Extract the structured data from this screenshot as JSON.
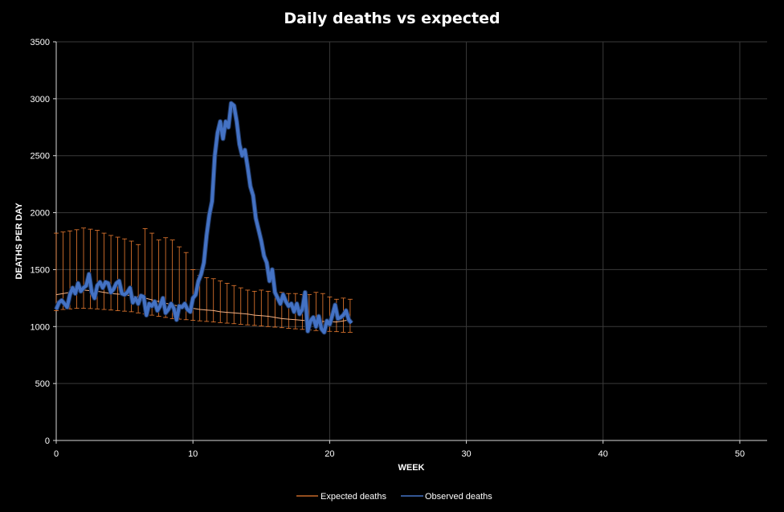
{
  "chart_data": {
    "type": "line",
    "title": "Daily deaths  vs  expected",
    "xlabel": "WEEK",
    "ylabel": "DEATHS PER DAY",
    "xlim": [
      0,
      52
    ],
    "ylim": [
      0,
      3500
    ],
    "xticks": [
      0,
      10,
      20,
      30,
      40,
      50
    ],
    "yticks": [
      0,
      500,
      1000,
      1500,
      2000,
      2500,
      3000,
      3500
    ],
    "grid": true,
    "legend_position": "bottom",
    "series": [
      {
        "name": "Expected deaths",
        "color": "#ed7d31",
        "style": "line-with-error-bars",
        "x": [
          0,
          0.5,
          1,
          1.5,
          2,
          2.5,
          3,
          3.5,
          4,
          4.5,
          5,
          5.5,
          6,
          6.5,
          7,
          7.5,
          8,
          8.5,
          9,
          9.5,
          10,
          10.5,
          11,
          11.5,
          12,
          12.5,
          13,
          13.5,
          14,
          14.5,
          15,
          15.5,
          16,
          16.5,
          17,
          17.5,
          18,
          18.5,
          19,
          19.5,
          20,
          20.5,
          21,
          21.5
        ],
        "values": [
          1280,
          1290,
          1300,
          1310,
          1320,
          1315,
          1310,
          1300,
          1290,
          1285,
          1280,
          1270,
          1260,
          1250,
          1235,
          1220,
          1205,
          1190,
          1180,
          1170,
          1160,
          1150,
          1145,
          1140,
          1130,
          1125,
          1120,
          1115,
          1110,
          1100,
          1095,
          1090,
          1080,
          1070,
          1065,
          1060,
          1055,
          1050,
          1048,
          1045,
          1042,
          1040,
          1050,
          1060
        ],
        "upper": [
          1820,
          1830,
          1840,
          1850,
          1865,
          1855,
          1845,
          1820,
          1800,
          1785,
          1770,
          1750,
          1720,
          1860,
          1820,
          1760,
          1780,
          1760,
          1700,
          1650,
          1500,
          1450,
          1430,
          1420,
          1400,
          1380,
          1360,
          1340,
          1320,
          1310,
          1320,
          1310,
          1300,
          1300,
          1290,
          1290,
          1280,
          1280,
          1300,
          1290,
          1260,
          1240,
          1250,
          1240
        ],
        "lower": [
          1140,
          1150,
          1155,
          1160,
          1160,
          1158,
          1155,
          1150,
          1145,
          1140,
          1135,
          1130,
          1120,
          1110,
          1100,
          1090,
          1080,
          1070,
          1065,
          1060,
          1055,
          1050,
          1045,
          1040,
          1035,
          1030,
          1025,
          1020,
          1015,
          1010,
          1005,
          1000,
          995,
          990,
          985,
          980,
          975,
          970,
          965,
          960,
          958,
          955,
          950,
          950
        ]
      },
      {
        "name": "Observed deaths",
        "color": "#4472c4",
        "style": "thick-line",
        "x": [
          0,
          0.2,
          0.4,
          0.6,
          0.8,
          1.0,
          1.2,
          1.4,
          1.6,
          1.8,
          2.0,
          2.2,
          2.4,
          2.6,
          2.8,
          3.0,
          3.2,
          3.4,
          3.6,
          3.8,
          4.0,
          4.2,
          4.4,
          4.6,
          4.8,
          5.0,
          5.2,
          5.4,
          5.6,
          5.8,
          6.0,
          6.2,
          6.4,
          6.6,
          6.8,
          7.0,
          7.2,
          7.4,
          7.6,
          7.8,
          8.0,
          8.2,
          8.4,
          8.6,
          8.8,
          9.0,
          9.2,
          9.4,
          9.6,
          9.8,
          10.0,
          10.2,
          10.4,
          10.6,
          10.8,
          11.0,
          11.2,
          11.4,
          11.6,
          11.8,
          12.0,
          12.2,
          12.4,
          12.6,
          12.8,
          13.0,
          13.2,
          13.4,
          13.6,
          13.8,
          14.0,
          14.2,
          14.4,
          14.6,
          14.8,
          15.0,
          15.2,
          15.4,
          15.6,
          15.8,
          16.0,
          16.2,
          16.4,
          16.6,
          16.8,
          17.0,
          17.2,
          17.4,
          17.6,
          17.8,
          18.0,
          18.2,
          18.4,
          18.6,
          18.8,
          19.0,
          19.2,
          19.4,
          19.6,
          19.8,
          20.0,
          20.2,
          20.4,
          20.6,
          20.8,
          21.0,
          21.2,
          21.4,
          21.6
        ],
        "values": [
          1150,
          1210,
          1230,
          1200,
          1170,
          1280,
          1340,
          1290,
          1380,
          1310,
          1340,
          1360,
          1460,
          1300,
          1250,
          1360,
          1390,
          1340,
          1390,
          1380,
          1300,
          1330,
          1380,
          1400,
          1290,
          1280,
          1300,
          1340,
          1210,
          1250,
          1200,
          1270,
          1260,
          1100,
          1200,
          1180,
          1220,
          1140,
          1180,
          1250,
          1120,
          1150,
          1200,
          1160,
          1060,
          1180,
          1170,
          1200,
          1150,
          1130,
          1250,
          1280,
          1400,
          1460,
          1560,
          1800,
          1980,
          2100,
          2500,
          2700,
          2800,
          2650,
          2800,
          2750,
          2960,
          2940,
          2800,
          2600,
          2500,
          2550,
          2400,
          2230,
          2150,
          1950,
          1850,
          1750,
          1620,
          1560,
          1400,
          1500,
          1300,
          1250,
          1200,
          1280,
          1220,
          1180,
          1200,
          1130,
          1200,
          1110,
          1150,
          1300,
          960,
          1050,
          1080,
          1000,
          1090,
          980,
          950,
          1050,
          1020,
          1100,
          1190,
          1070,
          1080,
          1100,
          1140,
          1060,
          1030
        ]
      }
    ]
  }
}
